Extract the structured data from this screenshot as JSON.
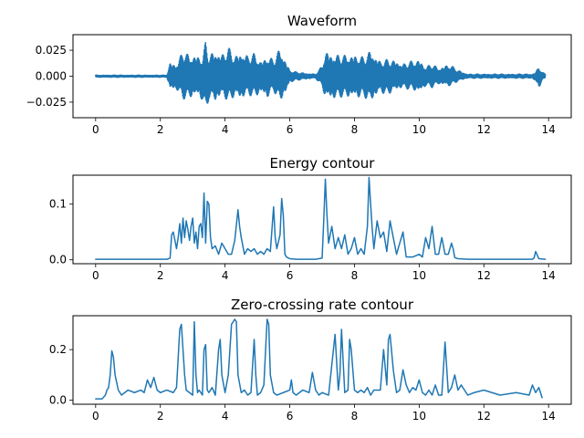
{
  "colors": {
    "series": "#1f77b4"
  },
  "chart_data": [
    {
      "type": "line",
      "title": "Waveform",
      "xlim": [
        -0.7,
        14.7
      ],
      "ylim": [
        -0.04,
        0.04
      ],
      "xticks": [
        0,
        2,
        4,
        6,
        8,
        10,
        12,
        14
      ],
      "yticks": [
        -0.025,
        0.0,
        0.025
      ],
      "ytick_labels": [
        "−0.025",
        "0.000",
        "0.025"
      ],
      "series": [
        {
          "style": "dense-oscillation",
          "x_range": [
            0,
            13.9
          ],
          "envelope_t": [
            0,
            2.2,
            2.3,
            2.5,
            2.7,
            2.9,
            3.1,
            3.3,
            3.4,
            3.5,
            3.7,
            3.9,
            4.1,
            4.3,
            4.5,
            4.7,
            4.9,
            5.1,
            5.3,
            5.5,
            5.7,
            5.9,
            6.0,
            6.2,
            6.5,
            6.8,
            7.0,
            7.1,
            7.3,
            7.6,
            8.0,
            8.3,
            8.5,
            8.8,
            9.0,
            9.3,
            9.5,
            9.8,
            10.0,
            10.2,
            10.4,
            10.6,
            10.9,
            11.2,
            11.5,
            12.0,
            12.5,
            13.0,
            13.5,
            13.6,
            13.7,
            13.8,
            13.9
          ],
          "envelope_top": [
            0.001,
            0.001,
            0.014,
            0.012,
            0.025,
            0.02,
            0.022,
            0.018,
            0.034,
            0.02,
            0.026,
            0.022,
            0.028,
            0.02,
            0.025,
            0.02,
            0.022,
            0.015,
            0.02,
            0.016,
            0.028,
            0.014,
            0.006,
            0.004,
            0.003,
            0.002,
            0.01,
            0.026,
            0.022,
            0.02,
            0.022,
            0.018,
            0.026,
            0.015,
            0.016,
            0.016,
            0.012,
            0.015,
            0.017,
            0.009,
            0.012,
            0.008,
            0.012,
            0.006,
            0.002,
            0.002,
            0.002,
            0.002,
            0.002,
            0.004,
            0.01,
            0.004,
            0.002
          ],
          "envelope_bottom": [
            -0.001,
            -0.001,
            -0.014,
            -0.014,
            -0.022,
            -0.022,
            -0.02,
            -0.024,
            -0.037,
            -0.022,
            -0.026,
            -0.02,
            -0.024,
            -0.02,
            -0.024,
            -0.018,
            -0.02,
            -0.018,
            -0.022,
            -0.014,
            -0.026,
            -0.016,
            -0.006,
            -0.004,
            -0.003,
            -0.002,
            -0.01,
            -0.022,
            -0.024,
            -0.02,
            -0.022,
            -0.02,
            -0.026,
            -0.016,
            -0.018,
            -0.014,
            -0.012,
            -0.013,
            -0.017,
            -0.01,
            -0.011,
            -0.008,
            -0.01,
            -0.005,
            -0.002,
            -0.002,
            -0.002,
            -0.002,
            -0.002,
            -0.006,
            -0.012,
            -0.004,
            -0.002
          ]
        }
      ]
    },
    {
      "type": "line",
      "title": "Energy contour",
      "xlim": [
        -0.7,
        14.7
      ],
      "ylim": [
        -0.007,
        0.152
      ],
      "xticks": [
        0,
        2,
        4,
        6,
        8,
        10,
        12,
        14
      ],
      "yticks": [
        0.0,
        0.1
      ],
      "ytick_labels": [
        "0.0",
        "0.1"
      ],
      "series": [
        {
          "x": [
            0,
            2.2,
            2.3,
            2.35,
            2.4,
            2.5,
            2.55,
            2.6,
            2.65,
            2.7,
            2.75,
            2.8,
            2.85,
            2.9,
            2.95,
            3.0,
            3.05,
            3.1,
            3.15,
            3.2,
            3.25,
            3.3,
            3.35,
            3.4,
            3.45,
            3.5,
            3.55,
            3.6,
            3.7,
            3.8,
            3.9,
            4.0,
            4.1,
            4.2,
            4.3,
            4.4,
            4.45,
            4.5,
            4.6,
            4.7,
            4.8,
            4.9,
            5.0,
            5.1,
            5.2,
            5.3,
            5.4,
            5.5,
            5.55,
            5.6,
            5.7,
            5.75,
            5.8,
            5.85,
            5.9,
            6.0,
            6.2,
            6.5,
            6.8,
            7.0,
            7.05,
            7.1,
            7.15,
            7.2,
            7.3,
            7.4,
            7.5,
            7.6,
            7.7,
            7.8,
            7.9,
            8.0,
            8.1,
            8.2,
            8.3,
            8.4,
            8.45,
            8.5,
            8.55,
            8.6,
            8.7,
            8.8,
            8.9,
            9.0,
            9.1,
            9.2,
            9.3,
            9.4,
            9.5,
            9.6,
            9.8,
            10.0,
            10.1,
            10.2,
            10.3,
            10.35,
            10.4,
            10.5,
            10.6,
            10.7,
            10.8,
            10.9,
            11.0,
            11.05,
            11.1,
            11.2,
            11.5,
            12.0,
            13.0,
            13.5,
            13.55,
            13.6,
            13.7,
            13.9
          ],
          "y": [
            0.001,
            0.001,
            0.003,
            0.045,
            0.05,
            0.02,
            0.04,
            0.065,
            0.03,
            0.075,
            0.04,
            0.07,
            0.055,
            0.035,
            0.06,
            0.075,
            0.03,
            0.05,
            0.02,
            0.06,
            0.065,
            0.04,
            0.12,
            0.03,
            0.105,
            0.1,
            0.04,
            0.02,
            0.025,
            0.01,
            0.03,
            0.02,
            0.01,
            0.01,
            0.035,
            0.09,
            0.06,
            0.04,
            0.01,
            0.02,
            0.015,
            0.02,
            0.01,
            0.015,
            0.01,
            0.02,
            0.015,
            0.095,
            0.04,
            0.02,
            0.045,
            0.11,
            0.08,
            0.01,
            0.005,
            0.002,
            0.001,
            0.001,
            0.001,
            0.003,
            0.07,
            0.145,
            0.08,
            0.03,
            0.06,
            0.02,
            0.04,
            0.02,
            0.045,
            0.01,
            0.02,
            0.04,
            0.01,
            0.02,
            0.01,
            0.06,
            0.148,
            0.1,
            0.055,
            0.02,
            0.07,
            0.04,
            0.05,
            0.015,
            0.07,
            0.04,
            0.01,
            0.03,
            0.05,
            0.005,
            0.005,
            0.01,
            0.005,
            0.04,
            0.02,
            0.04,
            0.06,
            0.01,
            0.01,
            0.04,
            0.01,
            0.01,
            0.03,
            0.02,
            0.004,
            0.002,
            0.001,
            0.001,
            0.001,
            0.001,
            0.003,
            0.015,
            0.002,
            0.001
          ]
        }
      ]
    },
    {
      "type": "line",
      "title": "Zero-crossing rate contour",
      "xlim": [
        -0.7,
        14.7
      ],
      "ylim": [
        -0.016,
        0.334
      ],
      "xticks": [
        0,
        2,
        4,
        6,
        8,
        10,
        12,
        14
      ],
      "yticks": [
        0.0,
        0.2
      ],
      "ytick_labels": [
        "0.0",
        "0.2"
      ],
      "series": [
        {
          "x": [
            0,
            0.2,
            0.3,
            0.35,
            0.4,
            0.45,
            0.5,
            0.55,
            0.6,
            0.7,
            0.8,
            0.9,
            1.0,
            1.2,
            1.4,
            1.5,
            1.6,
            1.7,
            1.8,
            1.9,
            2.0,
            2.2,
            2.4,
            2.5,
            2.6,
            2.65,
            2.7,
            2.75,
            2.8,
            2.9,
            3.0,
            3.05,
            3.1,
            3.15,
            3.2,
            3.3,
            3.35,
            3.4,
            3.45,
            3.5,
            3.6,
            3.7,
            3.8,
            3.85,
            3.9,
            4.0,
            4.1,
            4.2,
            4.3,
            4.35,
            4.4,
            4.5,
            4.6,
            4.7,
            4.8,
            4.9,
            4.95,
            5.0,
            5.1,
            5.2,
            5.3,
            5.35,
            5.4,
            5.5,
            5.6,
            5.8,
            6.0,
            6.05,
            6.1,
            6.2,
            6.4,
            6.6,
            6.7,
            6.8,
            6.9,
            7.0,
            7.2,
            7.4,
            7.5,
            7.55,
            7.6,
            7.7,
            7.8,
            7.85,
            7.9,
            8.0,
            8.1,
            8.2,
            8.3,
            8.4,
            8.5,
            8.6,
            8.8,
            8.9,
            9.0,
            9.05,
            9.1,
            9.2,
            9.3,
            9.4,
            9.5,
            9.6,
            9.7,
            9.8,
            9.9,
            10.0,
            10.1,
            10.2,
            10.3,
            10.4,
            10.5,
            10.6,
            10.7,
            10.8,
            10.9,
            11.0,
            11.1,
            11.2,
            11.3,
            11.5,
            11.7,
            12.0,
            12.5,
            13.0,
            13.4,
            13.5,
            13.6,
            13.7,
            13.8
          ],
          "y": [
            0.005,
            0.005,
            0.02,
            0.04,
            0.05,
            0.1,
            0.195,
            0.17,
            0.1,
            0.04,
            0.02,
            0.03,
            0.04,
            0.03,
            0.04,
            0.03,
            0.08,
            0.05,
            0.09,
            0.04,
            0.03,
            0.04,
            0.03,
            0.05,
            0.28,
            0.3,
            0.2,
            0.1,
            0.04,
            0.03,
            0.02,
            0.31,
            0.1,
            0.03,
            0.04,
            0.02,
            0.2,
            0.22,
            0.04,
            0.03,
            0.05,
            0.02,
            0.2,
            0.24,
            0.1,
            0.03,
            0.1,
            0.3,
            0.32,
            0.31,
            0.1,
            0.03,
            0.04,
            0.02,
            0.03,
            0.24,
            0.1,
            0.02,
            0.03,
            0.06,
            0.32,
            0.3,
            0.1,
            0.03,
            0.02,
            0.03,
            0.04,
            0.08,
            0.03,
            0.02,
            0.04,
            0.03,
            0.11,
            0.04,
            0.02,
            0.03,
            0.02,
            0.26,
            0.04,
            0.1,
            0.28,
            0.03,
            0.04,
            0.24,
            0.2,
            0.04,
            0.03,
            0.04,
            0.03,
            0.05,
            0.02,
            0.04,
            0.04,
            0.2,
            0.06,
            0.24,
            0.26,
            0.12,
            0.03,
            0.04,
            0.12,
            0.06,
            0.03,
            0.05,
            0.04,
            0.08,
            0.03,
            0.02,
            0.04,
            0.02,
            0.06,
            0.02,
            0.02,
            0.23,
            0.03,
            0.05,
            0.1,
            0.04,
            0.06,
            0.02,
            0.03,
            0.04,
            0.02,
            0.03,
            0.02,
            0.06,
            0.03,
            0.05,
            0.01
          ]
        }
      ]
    }
  ]
}
